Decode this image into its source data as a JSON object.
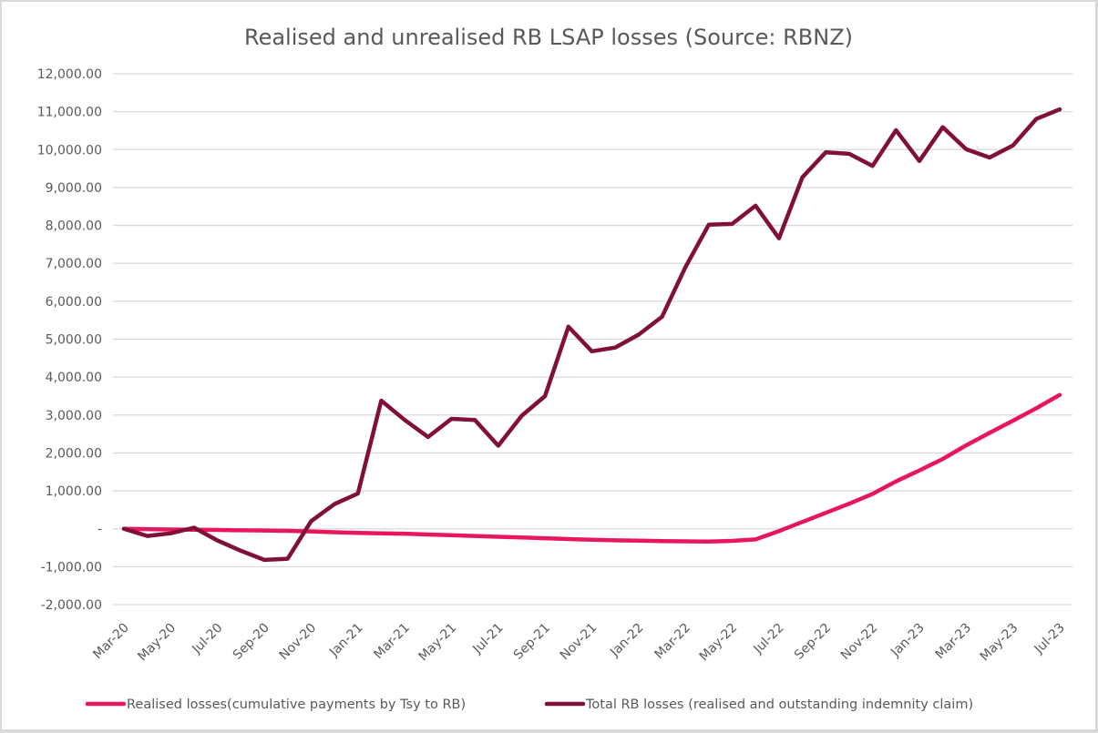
{
  "chart_data": {
    "type": "line",
    "title": "Realised and unrealised RB LSAP losses (Source: RBNZ)",
    "xlabel": "",
    "ylabel": "",
    "ylim": [
      -2000,
      12000
    ],
    "y_ticks": [
      12000,
      11000,
      10000,
      9000,
      8000,
      7000,
      6000,
      5000,
      4000,
      3000,
      2000,
      1000,
      0,
      -1000,
      -2000
    ],
    "y_tick_labels": [
      "12,000.00",
      "11,000.00",
      "10,000.00",
      "9,000.00",
      "8,000.00",
      "7,000.00",
      "6,000.00",
      "5,000.00",
      "4,000.00",
      "3,000.00",
      "2,000.00",
      "1,000.00",
      "-",
      "-1,000.00",
      "-2,000.00"
    ],
    "grid": true,
    "legend_position": "bottom",
    "x": [
      "Mar-20",
      "Apr-20",
      "May-20",
      "Jun-20",
      "Jul-20",
      "Aug-20",
      "Sep-20",
      "Oct-20",
      "Nov-20",
      "Dec-20",
      "Jan-21",
      "Feb-21",
      "Mar-21",
      "Apr-21",
      "May-21",
      "Jun-21",
      "Jul-21",
      "Aug-21",
      "Sep-21",
      "Oct-21",
      "Nov-21",
      "Dec-21",
      "Jan-22",
      "Feb-22",
      "Mar-22",
      "Apr-22",
      "May-22",
      "Jun-22",
      "Jul-22",
      "Aug-22",
      "Sep-22",
      "Oct-22",
      "Nov-22",
      "Dec-22",
      "Jan-23",
      "Feb-23",
      "Mar-23",
      "Apr-23",
      "May-23",
      "Jun-23",
      "Jul-23"
    ],
    "x_tick_labels": [
      "Mar-20",
      "May-20",
      "Jul-20",
      "Sep-20",
      "Nov-20",
      "Jan-21",
      "Mar-21",
      "May-21",
      "Jul-21",
      "Sep-21",
      "Nov-21",
      "Jan-22",
      "Mar-22",
      "May-22",
      "Jul-22",
      "Sep-22",
      "Nov-22",
      "Jan-23",
      "Mar-23",
      "May-23",
      "Jul-23"
    ],
    "series": [
      {
        "name": "Realised losses(cumulative payments by Tsy to RB)",
        "color": "#e8175d",
        "values": [
          0,
          -10,
          -20,
          -25,
          -30,
          -40,
          -45,
          -55,
          -70,
          -90,
          -110,
          -120,
          -130,
          -150,
          -170,
          -190,
          -210,
          -230,
          -250,
          -270,
          -290,
          -305,
          -315,
          -325,
          -330,
          -335,
          -320,
          -280,
          -60,
          180,
          420,
          660,
          920,
          1250,
          1540,
          1840,
          2200,
          2530,
          2850,
          3180,
          3530
        ]
      },
      {
        "name": "Total RB losses (realised and outstanding indemnity claim)",
        "color": "#80103a",
        "values": [
          0,
          -190,
          -120,
          30,
          -310,
          -580,
          -820,
          -790,
          200,
          650,
          930,
          3380,
          2870,
          2420,
          2900,
          2870,
          2190,
          2980,
          3500,
          5330,
          4680,
          4780,
          5120,
          5590,
          6900,
          8020,
          8040,
          8520,
          7660,
          9270,
          9930,
          9890,
          9570,
          10510,
          9700,
          10590,
          10010,
          9790,
          10110,
          10810,
          11060
        ]
      }
    ]
  }
}
